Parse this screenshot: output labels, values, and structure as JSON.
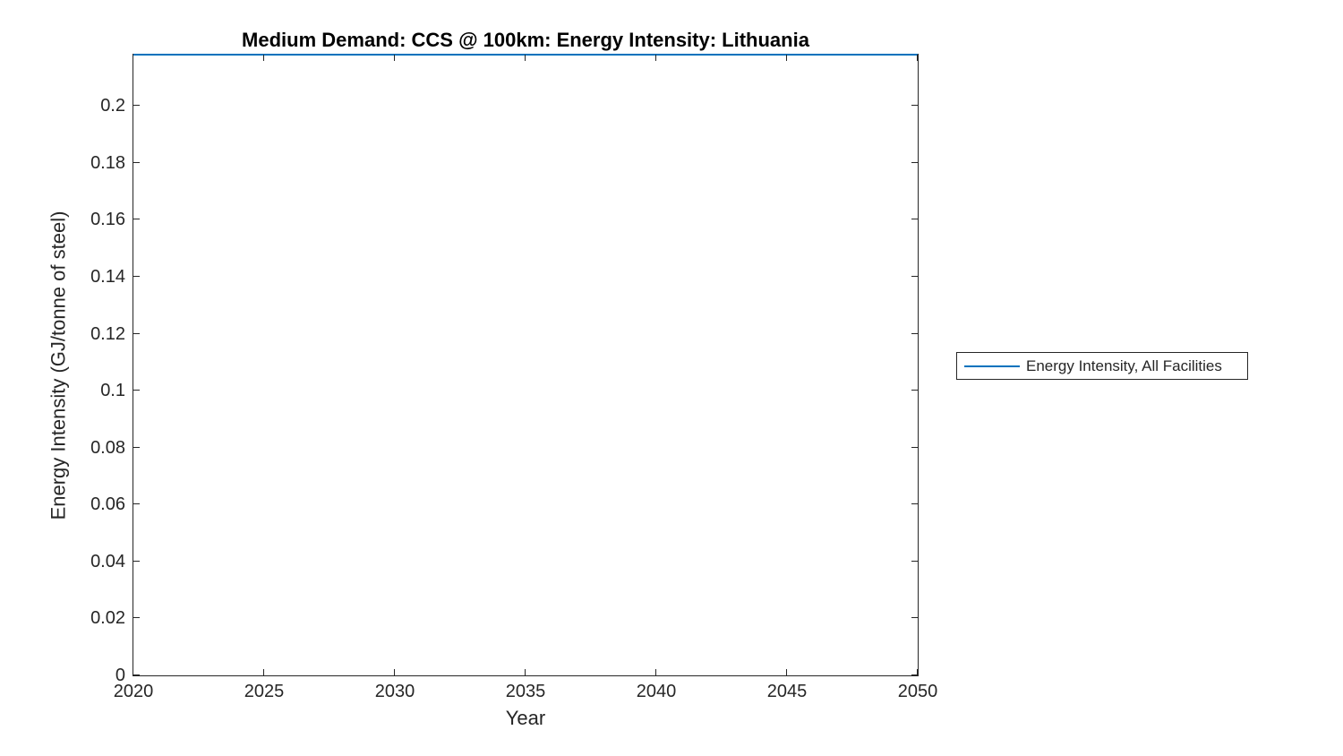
{
  "chart_data": {
    "type": "line",
    "title": "Medium Demand: CCS @ 100km: Energy Intensity: Lithuania",
    "xlabel": "Year",
    "ylabel": "Energy Intensity (GJ/tonne of steel)",
    "xlim": [
      2020,
      2050
    ],
    "ylim": [
      0,
      0.218
    ],
    "x_ticks": [
      2020,
      2025,
      2030,
      2035,
      2040,
      2045,
      2050
    ],
    "x_tick_labels": [
      "2020",
      "2025",
      "2030",
      "2035",
      "2040",
      "2045",
      "2050"
    ],
    "y_ticks": [
      0,
      0.02,
      0.04,
      0.06,
      0.08,
      0.1,
      0.12,
      0.14,
      0.16,
      0.18,
      0.2
    ],
    "y_tick_labels": [
      "0",
      "0.02",
      "0.04",
      "0.06",
      "0.08",
      "0.1",
      "0.12",
      "0.14",
      "0.16",
      "0.18",
      "0.2"
    ],
    "grid": false,
    "box": true,
    "tick_direction": "in",
    "legend_position": "outside-right",
    "series": [
      {
        "name": "Energy Intensity, All Facilities",
        "color": "#0072BD",
        "x": [
          2020,
          2025,
          2030,
          2035,
          2040,
          2045,
          2050
        ],
        "values": [
          0.218,
          0.218,
          0.218,
          0.218,
          0.218,
          0.218,
          0.218
        ]
      }
    ]
  },
  "legend": {
    "entries": [
      {
        "label": "Energy Intensity, All Facilities",
        "color": "#0072BD"
      }
    ]
  },
  "colors": {
    "axis": "#262626",
    "title": "#000000",
    "series_line": "#0072BD",
    "background": "#ffffff"
  }
}
